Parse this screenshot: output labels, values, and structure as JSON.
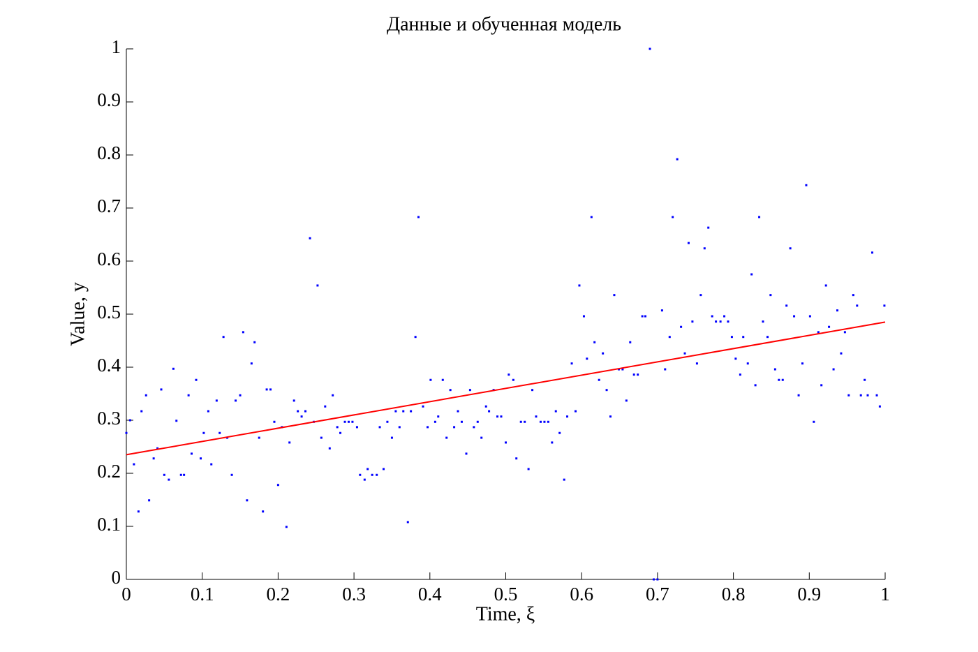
{
  "chart_data": {
    "type": "scatter",
    "title": "Данные и обученная модель",
    "xlabel": "Time, ξ",
    "ylabel": "Value, y",
    "xlim": [
      0,
      1
    ],
    "ylim": [
      0,
      1
    ],
    "xticks": [
      0,
      0.1,
      0.2,
      0.3,
      0.4,
      0.5,
      0.6,
      0.7,
      0.8,
      0.9,
      1
    ],
    "yticks": [
      0,
      0.1,
      0.2,
      0.3,
      0.4,
      0.5,
      0.6,
      0.7,
      0.8,
      0.9,
      1
    ],
    "series": [
      {
        "type": "scatter",
        "color": "#0000ff",
        "x": [
          0,
          0.005,
          0.01,
          0.016,
          0.02,
          0.026,
          0.03,
          0.036,
          0.041,
          0.046,
          0.05,
          0.056,
          0.062,
          0.066,
          0.072,
          0.076,
          0.082,
          0.086,
          0.092,
          0.098,
          0.102,
          0.108,
          0.112,
          0.119,
          0.123,
          0.128,
          0.133,
          0.139,
          0.144,
          0.15,
          0.154,
          0.159,
          0.165,
          0.169,
          0.175,
          0.18,
          0.185,
          0.19,
          0.195,
          0.2,
          0.205,
          0.211,
          0.215,
          0.221,
          0.226,
          0.231,
          0.236,
          0.242,
          0.247,
          0.252,
          0.257,
          0.262,
          0.268,
          0.272,
          0.278,
          0.282,
          0.288,
          0.293,
          0.298,
          0.304,
          0.308,
          0.314,
          0.318,
          0.324,
          0.33,
          0.334,
          0.339,
          0.344,
          0.35,
          0.355,
          0.36,
          0.365,
          0.371,
          0.375,
          0.381,
          0.385,
          0.391,
          0.397,
          0.401,
          0.407,
          0.411,
          0.417,
          0.422,
          0.427,
          0.432,
          0.437,
          0.442,
          0.448,
          0.453,
          0.458,
          0.463,
          0.468,
          0.474,
          0.478,
          0.484,
          0.489,
          0.494,
          0.5,
          0.504,
          0.51,
          0.514,
          0.52,
          0.525,
          0.53,
          0.535,
          0.54,
          0.546,
          0.551,
          0.556,
          0.561,
          0.566,
          0.571,
          0.577,
          0.581,
          0.587,
          0.592,
          0.597,
          0.603,
          0.607,
          0.613,
          0.617,
          0.623,
          0.628,
          0.633,
          0.638,
          0.643,
          0.649,
          0.654,
          0.659,
          0.664,
          0.669,
          0.674,
          0.68,
          0.684,
          0.69,
          0.695,
          0.7,
          0.706,
          0.71,
          0.716,
          0.72,
          0.726,
          0.731,
          0.736,
          0.741,
          0.746,
          0.752,
          0.757,
          0.762,
          0.767,
          0.772,
          0.777,
          0.783,
          0.788,
          0.793,
          0.798,
          0.803,
          0.809,
          0.813,
          0.819,
          0.824,
          0.829,
          0.834,
          0.839,
          0.845,
          0.849,
          0.855,
          0.86,
          0.865,
          0.87,
          0.875,
          0.88,
          0.886,
          0.891,
          0.896,
          0.901,
          0.906,
          0.912,
          0.916,
          0.922,
          0.926,
          0.932,
          0.937,
          0.942,
          0.947,
          0.952,
          0.958,
          0.963,
          0.968,
          0.973,
          0.977,
          0.983,
          0.989,
          0.993,
          0.999
        ],
        "values": [
          0.276,
          0.3,
          0.217,
          0.128,
          0.317,
          0.347,
          0.149,
          0.228,
          0.247,
          0.358,
          0.197,
          0.188,
          0.397,
          0.299,
          0.197,
          0.197,
          0.347,
          0.237,
          0.376,
          0.228,
          0.276,
          0.317,
          0.217,
          0.337,
          0.276,
          0.457,
          0.267,
          0.197,
          0.337,
          0.347,
          0.466,
          0.149,
          0.407,
          0.447,
          0.267,
          0.128,
          0.358,
          0.358,
          0.297,
          0.178,
          0.287,
          0.099,
          0.258,
          0.337,
          0.317,
          0.307,
          0.317,
          0.643,
          0.297,
          0.554,
          0.267,
          0.326,
          0.247,
          0.347,
          0.287,
          0.276,
          0.297,
          0.297,
          0.297,
          0.287,
          0.197,
          0.188,
          0.208,
          0.197,
          0.197,
          0.287,
          0.208,
          0.297,
          0.267,
          0.317,
          0.287,
          0.317,
          0.108,
          0.317,
          0.457,
          0.683,
          0.326,
          0.287,
          0.376,
          0.297,
          0.307,
          0.376,
          0.267,
          0.357,
          0.287,
          0.317,
          0.297,
          0.237,
          0.357,
          0.287,
          0.297,
          0.267,
          0.326,
          0.317,
          0.357,
          0.307,
          0.307,
          0.258,
          0.386,
          0.376,
          0.228,
          0.297,
          0.297,
          0.208,
          0.357,
          0.307,
          0.297,
          0.297,
          0.297,
          0.258,
          0.317,
          0.276,
          0.188,
          0.307,
          0.407,
          0.317,
          0.554,
          0.496,
          0.416,
          0.683,
          0.447,
          0.376,
          0.426,
          0.357,
          0.307,
          0.536,
          0.396,
          0.396,
          0.337,
          0.447,
          0.386,
          0.386,
          0.496,
          0.496,
          1,
          0,
          0,
          0.507,
          0.396,
          0.457,
          0.683,
          0.792,
          0.476,
          0.426,
          0.634,
          0.486,
          0.407,
          0.536,
          0.624,
          0.663,
          0.496,
          0.486,
          0.486,
          0.496,
          0.486,
          0.457,
          0.416,
          0.386,
          0.457,
          0.407,
          0.575,
          0.366,
          0.683,
          0.486,
          0.457,
          0.536,
          0.396,
          0.376,
          0.376,
          0.516,
          0.624,
          0.496,
          0.347,
          0.407,
          0.743,
          0.496,
          0.297,
          0.466,
          0.366,
          0.554,
          0.476,
          0.396,
          0.507,
          0.426,
          0.466,
          0.347,
          0.536,
          0.516,
          0.347,
          0.376,
          0.347,
          0.616,
          0.347,
          0.326,
          0.516
        ]
      },
      {
        "type": "line",
        "color": "#ff0000",
        "x": [
          0,
          1
        ],
        "values": [
          0.235,
          0.485
        ]
      }
    ]
  }
}
